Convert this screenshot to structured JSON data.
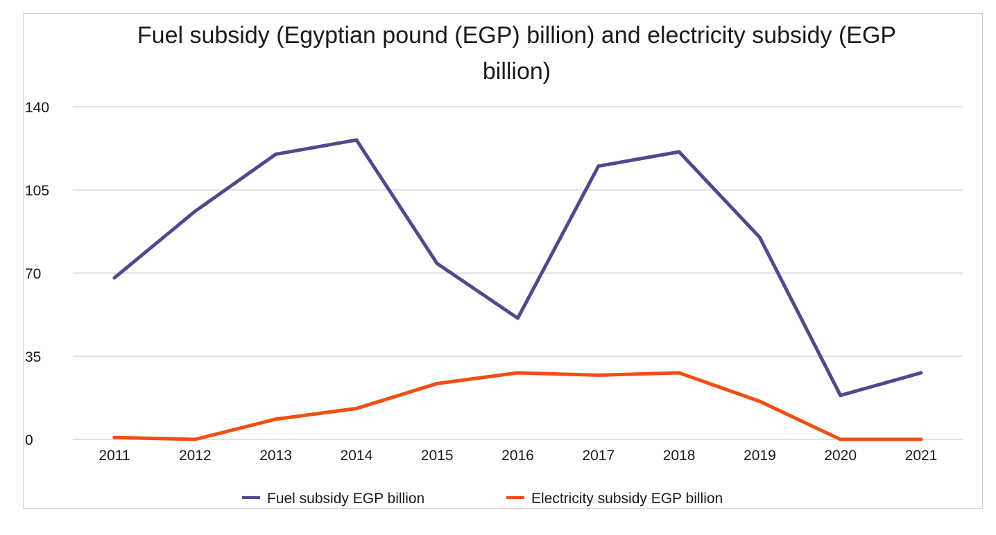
{
  "chart_data": {
    "type": "line",
    "title_lines": [
      "Fuel subsidy (Egyptian pound (EGP) billion) and electricity subsidy (EGP",
      "billion)"
    ],
    "categories": [
      "2011",
      "2012",
      "2013",
      "2014",
      "2015",
      "2016",
      "2017",
      "2018",
      "2019",
      "2020",
      "2021"
    ],
    "yticks": [
      0,
      35,
      70,
      105,
      140
    ],
    "ylim": [
      0,
      140
    ],
    "grid": true,
    "legend_position": "bottom",
    "series": [
      {
        "name": "Fuel subsidy EGP billion",
        "color": "#4f4a8c",
        "values": [
          68,
          96,
          120,
          126,
          74,
          51,
          115,
          121,
          85,
          18.5,
          28
        ]
      },
      {
        "name": "Electricity subsidy EGP billion",
        "color": "#f24e12",
        "values": [
          0.8,
          0,
          8.5,
          13,
          23.5,
          28,
          27,
          28,
          16,
          0,
          0
        ]
      }
    ]
  }
}
